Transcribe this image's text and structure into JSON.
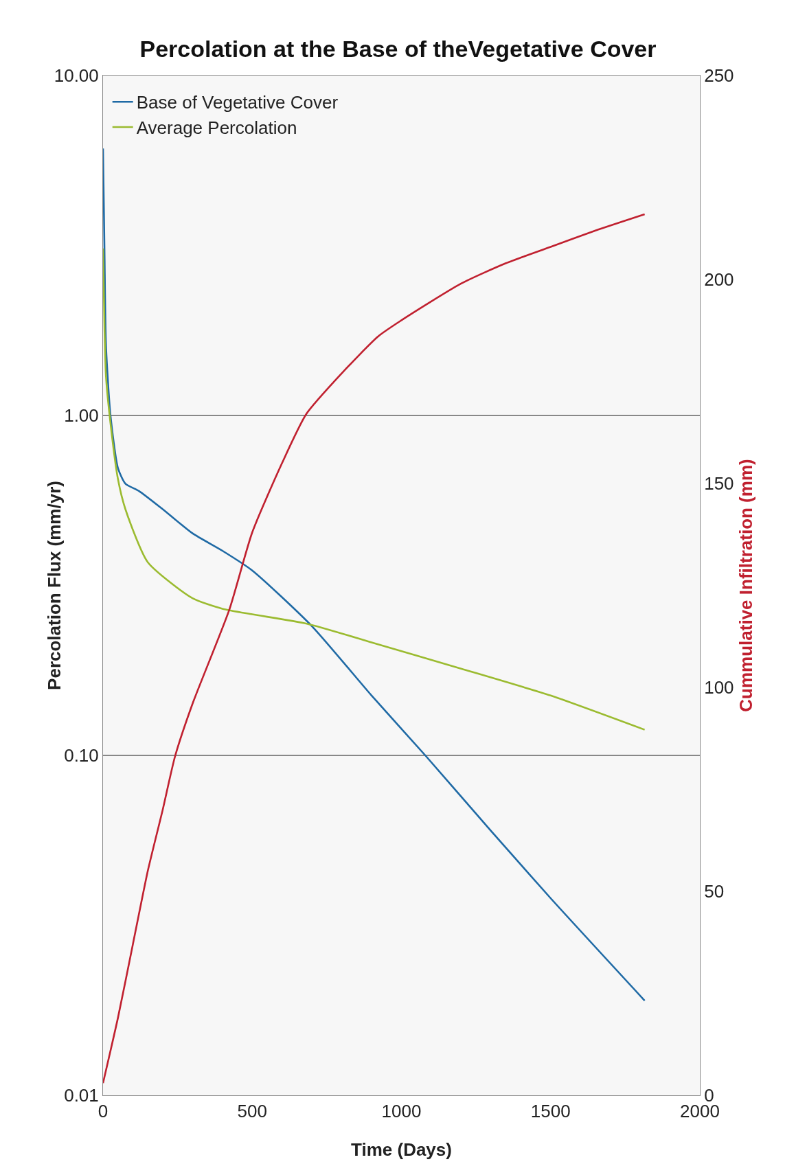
{
  "chart_data": {
    "type": "line",
    "title": "Percolation at the Base of theVegetative Cover",
    "xlabel": "Time (Days)",
    "ylabel": "Percolation Flux (mm/yr)",
    "y2label": "Cummulative Infiltration (mm)",
    "xlim": [
      0,
      2000
    ],
    "xticks": [
      0,
      500,
      1000,
      1500,
      2000
    ],
    "ylim": [
      0.01,
      10
    ],
    "yticks": [
      {
        "value": 0.01,
        "label": "0.01"
      },
      {
        "value": 0.1,
        "label": "0.10"
      },
      {
        "value": 1,
        "label": "1.00"
      },
      {
        "value": 10,
        "label": "10.00"
      }
    ],
    "y2lim": [
      0,
      250
    ],
    "y2ticks": [
      0,
      50,
      100,
      150,
      200,
      250
    ],
    "log": "y",
    "grid": "y",
    "legend": "top left",
    "marker": "none",
    "line_style": "solid",
    "series": [
      {
        "name": "Base of Vegetative Cover",
        "color": "#1f6aa5",
        "x": [
          0,
          5,
          10,
          25,
          50,
          75,
          120,
          200,
          300,
          400,
          500,
          700,
          900,
          1080,
          1300,
          1500,
          1815
        ],
        "values": [
          6.1,
          3,
          1.6,
          1.0,
          0.7,
          0.63,
          0.6,
          0.53,
          0.45,
          0.4,
          0.35,
          0.24,
          0.15,
          0.1,
          0.06,
          0.038,
          0.019
        ]
      },
      {
        "name": "Average Percolation",
        "color": "#9bbb30",
        "x": [
          0,
          5,
          10,
          25,
          50,
          75,
          150,
          300,
          400,
          500,
          683,
          900,
          1200,
          1500,
          1815
        ],
        "values": [
          3.1,
          1.8,
          1.3,
          0.95,
          0.65,
          0.53,
          0.37,
          0.29,
          0.27,
          0.26,
          0.244,
          0.215,
          0.18,
          0.15,
          0.119
        ]
      },
      {
        "color": "#c0202f",
        "axis": "y2",
        "x": [
          0,
          50,
          100,
          150,
          200,
          241,
          300,
          423,
          500,
          600,
          681,
          800,
          921,
          1000,
          1200,
          1350,
          1500,
          1650,
          1815
        ],
        "values": [
          3,
          19,
          37,
          55,
          70,
          83,
          96,
          119,
          138,
          155,
          167,
          177,
          186,
          190,
          199,
          204,
          208,
          212,
          216
        ]
      }
    ]
  }
}
